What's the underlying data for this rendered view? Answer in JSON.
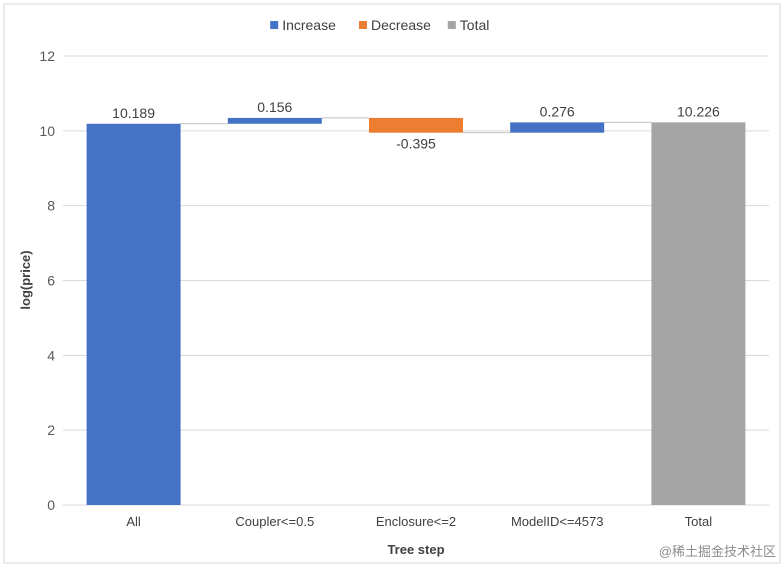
{
  "chart_data": {
    "type": "bar",
    "subtype": "waterfall",
    "categories": [
      "All",
      "Coupler<=0.5",
      "Enclosure<=2",
      "ModelID<=4573",
      "Total"
    ],
    "steps": [
      {
        "category": "All",
        "kind": "total",
        "value": 10.189,
        "label": "10.189"
      },
      {
        "category": "Coupler<=0.5",
        "kind": "increase",
        "value": 0.156,
        "label": "0.156"
      },
      {
        "category": "Enclosure<=2",
        "kind": "decrease",
        "value": -0.395,
        "label": "-0.395"
      },
      {
        "category": "ModelID<=4573",
        "kind": "increase",
        "value": 0.276,
        "label": "0.276"
      },
      {
        "category": "Total",
        "kind": "total",
        "value": 10.226,
        "label": "10.226"
      }
    ],
    "legend": [
      {
        "kind": "increase",
        "name": "Increase"
      },
      {
        "kind": "decrease",
        "name": "Decrease"
      },
      {
        "kind": "total",
        "name": "Total"
      }
    ],
    "xlabel": "Tree step",
    "ylabel": "log(price)",
    "ylim": [
      0,
      12
    ],
    "yticks": [
      0,
      2,
      4,
      6,
      8,
      10,
      12
    ],
    "grid": true,
    "legend_position": "top",
    "colors": {
      "increase": "#4472C4",
      "decrease": "#ED7D31",
      "total_first": "#4472C4",
      "total_last": "#A5A5A5",
      "gridline": "#d9d9d9",
      "connector": "#bfbfbf"
    }
  },
  "watermark": "@稀土掘金技术社区"
}
